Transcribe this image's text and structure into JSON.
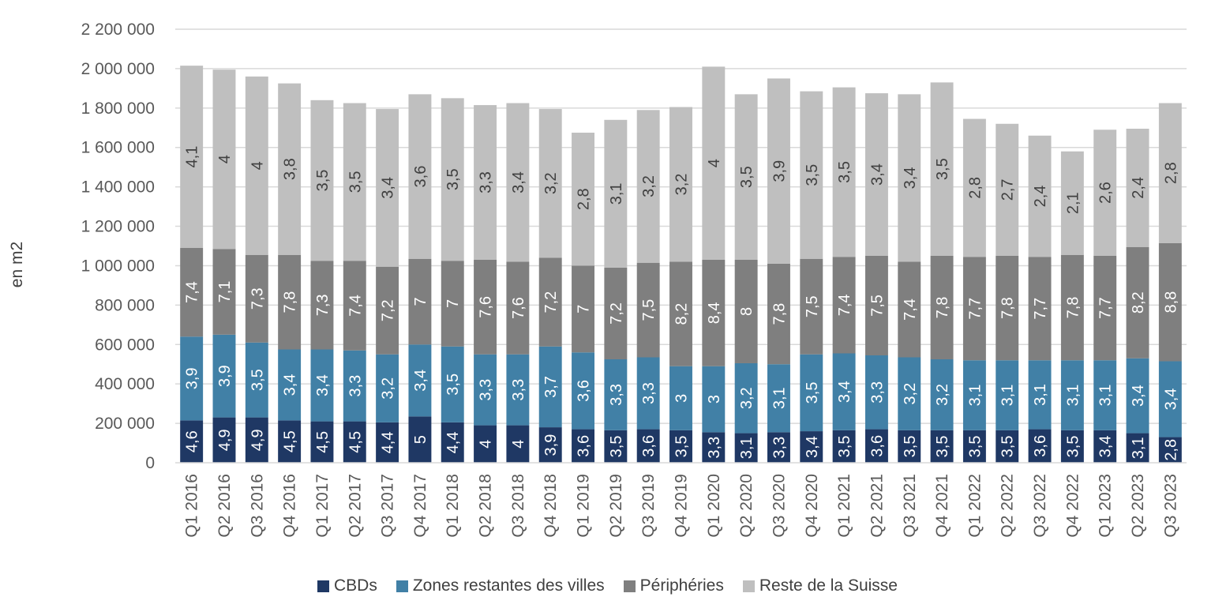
{
  "chart_data": {
    "type": "bar",
    "stacked": true,
    "ylabel": "en m2",
    "xlabel": "",
    "title": "",
    "ylim": [
      0,
      2200000
    ],
    "y_ticks": [
      0,
      200000,
      400000,
      600000,
      800000,
      1000000,
      1200000,
      1400000,
      1600000,
      1800000,
      2000000,
      2200000
    ],
    "y_tick_labels": [
      "0",
      "200 000",
      "400 000",
      "600 000",
      "800 000",
      "1 000 000",
      "1 200 000",
      "1 400 000",
      "1 600 000",
      "1 800 000",
      "2 000 000",
      "2 200 000"
    ],
    "grid": "horizontal",
    "legend_position": "bottom",
    "categories": [
      "Q1 2016",
      "Q2 2016",
      "Q3 2016",
      "Q4 2016",
      "Q1 2017",
      "Q2 2017",
      "Q3 2017",
      "Q4 2017",
      "Q1 2018",
      "Q2 2018",
      "Q3 2018",
      "Q4 2018",
      "Q1 2019",
      "Q2 2019",
      "Q3 2019",
      "Q4 2019",
      "Q1 2020",
      "Q2 2020",
      "Q3 2020",
      "Q4 2020",
      "Q1 2021",
      "Q2 2021",
      "Q3 2021",
      "Q4 2021",
      "Q1 2022",
      "Q2 2022",
      "Q3 2022",
      "Q4 2022",
      "Q1 2023",
      "Q2 2023",
      "Q3 2023"
    ],
    "series": [
      {
        "name": "CBDs",
        "color": "#1f3864",
        "values": [
          215000,
          230000,
          230000,
          215000,
          210000,
          210000,
          205000,
          235000,
          205000,
          190000,
          190000,
          180000,
          170000,
          165000,
          170000,
          165000,
          155000,
          150000,
          155000,
          160000,
          165000,
          170000,
          165000,
          165000,
          165000,
          165000,
          170000,
          165000,
          165000,
          150000,
          130000
        ],
        "labels": [
          "4,6",
          "4,9",
          "4,9",
          "4,5",
          "4,5",
          "4,5",
          "4,4",
          "5",
          "4,4",
          "4",
          "4",
          "3,9",
          "3,6",
          "3,5",
          "3,6",
          "3,5",
          "3,3",
          "3,1",
          "3,3",
          "3,4",
          "3,5",
          "3,6",
          "3,5",
          "3,5",
          "3,5",
          "3,5",
          "3,6",
          "3,5",
          "3,4",
          "3,1",
          "2,8"
        ]
      },
      {
        "name": "Zones restantes des villes",
        "color": "#4180a6",
        "values": [
          425000,
          420000,
          380000,
          360000,
          365000,
          360000,
          345000,
          365000,
          385000,
          360000,
          360000,
          410000,
          390000,
          360000,
          365000,
          325000,
          335000,
          355000,
          345000,
          390000,
          390000,
          375000,
          370000,
          360000,
          355000,
          355000,
          350000,
          355000,
          355000,
          380000,
          385000
        ],
        "labels": [
          "3,9",
          "3,9",
          "3,5",
          "3,4",
          "3,4",
          "3,3",
          "3,2",
          "3,4",
          "3,5",
          "3,3",
          "3,3",
          "3,7",
          "3,6",
          "3,3",
          "3,3",
          "3",
          "3",
          "3,2",
          "3,1",
          "3,5",
          "3,4",
          "3,3",
          "3,2",
          "3,2",
          "3,1",
          "3,1",
          "3,1",
          "3,1",
          "3,1",
          "3,4",
          "3,4"
        ]
      },
      {
        "name": "Périphéries",
        "color": "#7f7f7f",
        "values": [
          450000,
          435000,
          445000,
          480000,
          450000,
          455000,
          445000,
          435000,
          435000,
          480000,
          470000,
          450000,
          440000,
          465000,
          480000,
          530000,
          540000,
          525000,
          510000,
          485000,
          490000,
          505000,
          485000,
          525000,
          525000,
          530000,
          525000,
          535000,
          530000,
          565000,
          600000
        ],
        "labels": [
          "7,4",
          "7,1",
          "7,3",
          "7,8",
          "7,3",
          "7,4",
          "7,2",
          "7",
          "7",
          "7,6",
          "7,6",
          "7,2",
          "7",
          "7,2",
          "7,5",
          "8,2",
          "8,4",
          "8",
          "7,8",
          "7,5",
          "7,4",
          "7,5",
          "7,4",
          "7,8",
          "7,7",
          "7,8",
          "7,7",
          "7,8",
          "7,7",
          "8,2",
          "8,8"
        ]
      },
      {
        "name": "Reste de la Suisse",
        "color": "#bfbfbf",
        "values": [
          925000,
          910000,
          905000,
          870000,
          815000,
          800000,
          800000,
          835000,
          825000,
          785000,
          805000,
          755000,
          675000,
          750000,
          775000,
          785000,
          980000,
          840000,
          940000,
          850000,
          860000,
          825000,
          850000,
          880000,
          700000,
          670000,
          615000,
          525000,
          640000,
          600000,
          710000
        ],
        "labels": [
          "4,1",
          "4",
          "4",
          "3,8",
          "3,5",
          "3,5",
          "3,4",
          "3,6",
          "3,5",
          "3,3",
          "3,4",
          "3,2",
          "2,8",
          "3,1",
          "3,2",
          "3,2",
          "4",
          "3,5",
          "3,9",
          "3,5",
          "3,5",
          "3,4",
          "3,4",
          "3,5",
          "2,8",
          "2,7",
          "2,4",
          "2,1",
          "2,6",
          "2,4",
          "2,8"
        ]
      }
    ]
  }
}
